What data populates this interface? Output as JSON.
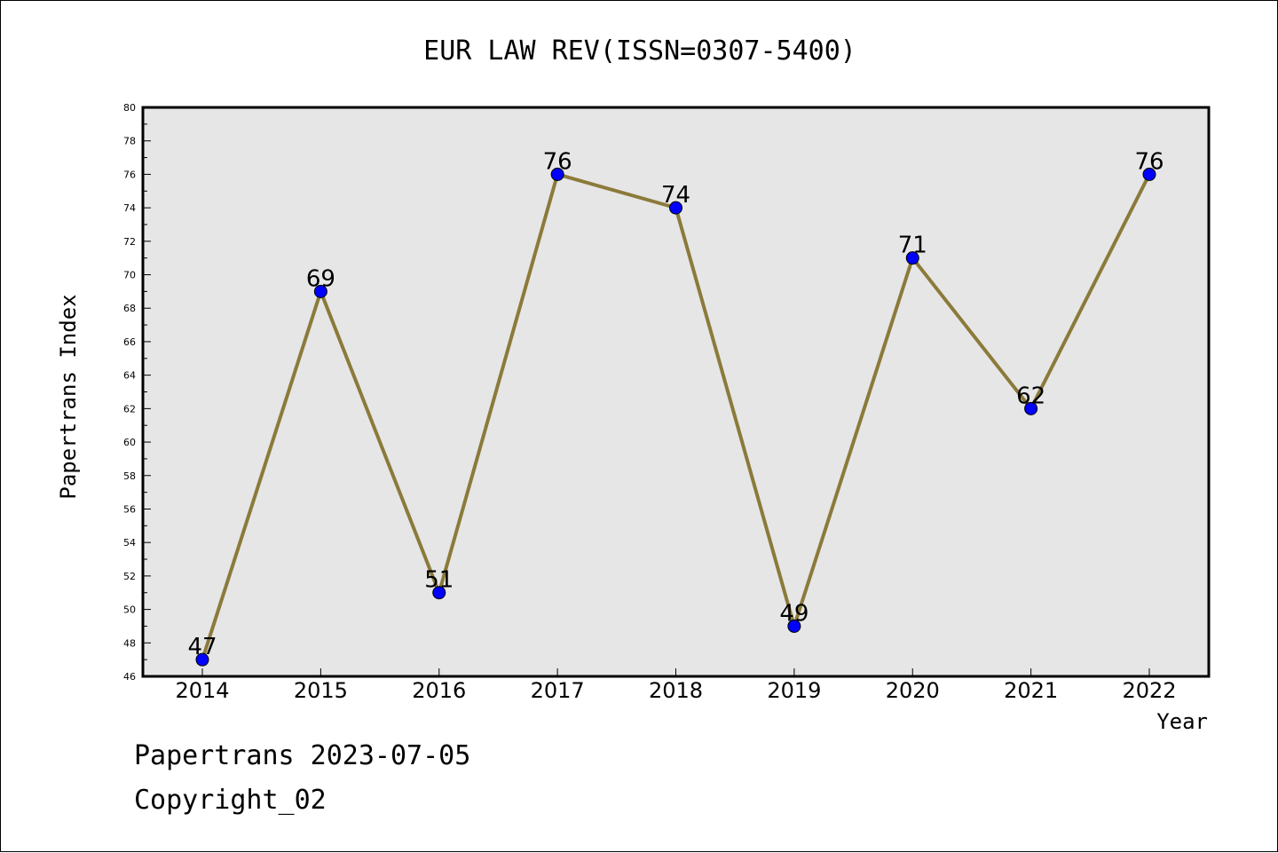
{
  "chart_data": {
    "type": "line",
    "title": "EUR LAW REV(ISSN=0307-5400)",
    "xlabel": "Year",
    "ylabel": "Papertrans Index",
    "categories": [
      "2014",
      "2015",
      "2016",
      "2017",
      "2018",
      "2019",
      "2020",
      "2021",
      "2022"
    ],
    "series": [
      {
        "values": [
          47,
          69,
          51,
          76,
          74,
          49,
          71,
          62,
          76
        ]
      }
    ],
    "data_labels": [
      "47",
      "69",
      "51",
      "76",
      "74",
      "49",
      "71",
      "62",
      "76"
    ],
    "ylim": [
      46,
      80
    ],
    "y_ticks": [
      "46",
      "48",
      "50",
      "52",
      "54",
      "56",
      "58",
      "60",
      "62",
      "64",
      "66",
      "68",
      "70",
      "72",
      "74",
      "76",
      "78",
      "80"
    ],
    "grid": false,
    "colors": {
      "line": "#8b7a3a",
      "marker": "#0000ff",
      "plot_bg": "#e6e6e6"
    }
  },
  "footer": {
    "line1": "Papertrans 2023-07-05",
    "line2": "Copyright_02"
  }
}
